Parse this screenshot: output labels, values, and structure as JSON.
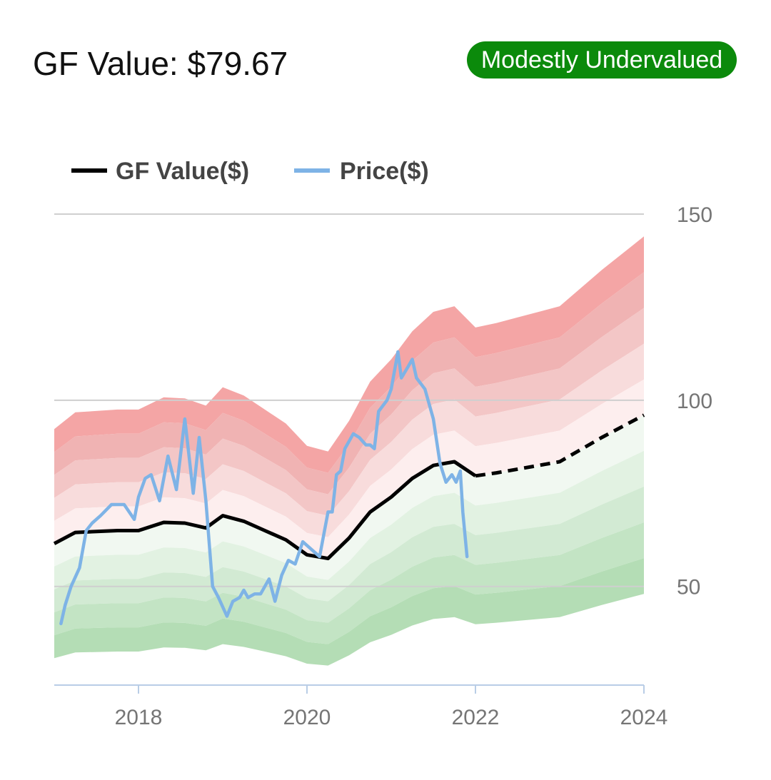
{
  "header": {
    "title": "GF Value: $79.67",
    "badge": "Modestly Undervalued",
    "badge_color": "#0b8a0b"
  },
  "chart_data": {
    "type": "area",
    "title": "GF Value: $79.67",
    "xlabel": "",
    "ylabel": "",
    "x_ticks": [
      2018,
      2020,
      2022,
      2024
    ],
    "y_ticks": [
      50,
      100,
      150
    ],
    "xlim": [
      2017.0,
      2024.0
    ],
    "ylim": [
      23.5,
      150
    ],
    "legend_position": "top-left",
    "grid": true,
    "legend": [
      {
        "name": "GF Value($)",
        "color": "#000000"
      },
      {
        "name": "Price($)",
        "color": "#7eb3e6"
      }
    ],
    "band_multipliers": [
      1.5,
      1.4,
      1.3,
      1.2,
      1.1,
      0.9,
      0.8,
      0.7,
      0.6,
      0.5
    ],
    "band_colors": {
      "above": [
        "#f4a5a5",
        "#f0b3b3",
        "#f3c6c6",
        "#f8dcdc",
        "#fdeeee"
      ],
      "below": [
        "#f1f8f1",
        "#e2f2e2",
        "#d2ead3",
        "#c3e4c4",
        "#b4ddb5"
      ]
    },
    "series": [
      {
        "name": "GF Value($)",
        "color": "#000000",
        "x": [
          2017.0,
          2017.25,
          2017.75,
          2018.0,
          2018.3,
          2018.55,
          2018.8,
          2019.0,
          2019.25,
          2019.5,
          2019.75,
          2020.0,
          2020.25,
          2020.5,
          2020.75,
          2021.0,
          2021.25,
          2021.5,
          2021.75,
          2022.0,
          2022.25,
          2022.5,
          2022.75,
          2023.0,
          2023.5,
          2024.0
        ],
        "values": [
          61.5,
          64.5,
          65.0,
          65.0,
          67.2,
          67.0,
          65.7,
          69.0,
          67.5,
          65.0,
          62.5,
          58.5,
          57.5,
          63.0,
          70.0,
          74.0,
          79.0,
          82.5,
          83.5,
          79.7,
          80.5,
          81.5,
          82.5,
          83.5,
          90.0,
          96.0
        ],
        "projected_from": 2022.0
      },
      {
        "name": "Price($)",
        "color": "#7eb3e6",
        "x": [
          2017.08,
          2017.13,
          2017.2,
          2017.3,
          2017.38,
          2017.45,
          2017.55,
          2017.68,
          2017.83,
          2017.95,
          2018.0,
          2018.08,
          2018.15,
          2018.25,
          2018.35,
          2018.45,
          2018.55,
          2018.65,
          2018.72,
          2018.8,
          2018.88,
          2018.95,
          2019.05,
          2019.12,
          2019.2,
          2019.25,
          2019.3,
          2019.38,
          2019.45,
          2019.55,
          2019.62,
          2019.7,
          2019.78,
          2019.86,
          2019.95,
          2020.05,
          2020.15,
          2020.25,
          2020.3,
          2020.35,
          2020.4,
          2020.45,
          2020.5,
          2020.55,
          2020.62,
          2020.7,
          2020.75,
          2020.8,
          2020.85,
          2020.95,
          2021.0,
          2021.08,
          2021.12,
          2021.2,
          2021.25,
          2021.3,
          2021.4,
          2021.5,
          2021.58,
          2021.65,
          2021.72,
          2021.77,
          2021.82,
          2021.85,
          2021.9
        ],
        "values": [
          40,
          45,
          50,
          55,
          65,
          67,
          69,
          72,
          72,
          68,
          74,
          79,
          80,
          73,
          85,
          76,
          95,
          75,
          90,
          73,
          50,
          47,
          42,
          46,
          47,
          49,
          47,
          48,
          48,
          52,
          46,
          53,
          57,
          56,
          62,
          60,
          58,
          70,
          70,
          80,
          81,
          87,
          89,
          91,
          90,
          88,
          88,
          87,
          97,
          100,
          103,
          113,
          106,
          109,
          111,
          106,
          103,
          95,
          83,
          78,
          80,
          78,
          81,
          70,
          58
        ]
      }
    ]
  }
}
